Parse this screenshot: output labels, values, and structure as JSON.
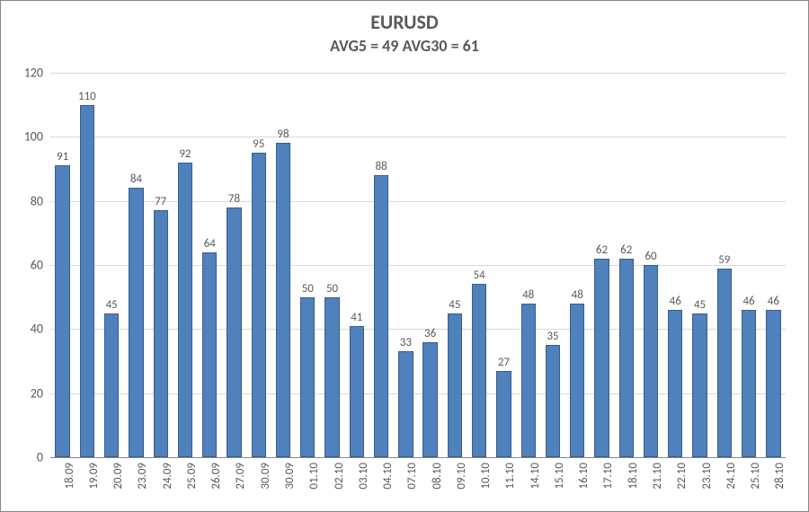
{
  "chart": {
    "type": "bar",
    "title": "EURUSD",
    "subtitle": "AVG5 = 49 AVG30 = 61",
    "title_fontsize": 22,
    "subtitle_fontsize": 18,
    "title_color": "#595959",
    "categories": [
      "18.09",
      "19.09",
      "20.09",
      "23.09",
      "24.09",
      "25.09",
      "26.09",
      "27.09",
      "30.09",
      "30.09",
      "01.10",
      "02.10",
      "03.10",
      "04.10",
      "07.10",
      "08.10",
      "09.10",
      "10.10",
      "11.10",
      "14.10",
      "15.10",
      "16.10",
      "17.10",
      "18.10",
      "21.10",
      "22.10",
      "23.10",
      "24.10",
      "25.10",
      "28.10"
    ],
    "values": [
      91,
      110,
      45,
      84,
      77,
      92,
      64,
      78,
      95,
      98,
      50,
      50,
      41,
      88,
      33,
      36,
      45,
      54,
      27,
      48,
      35,
      48,
      62,
      62,
      60,
      46,
      45,
      59,
      46,
      46
    ],
    "bar_fill": "#4f81bd",
    "bar_border": "#385d8a",
    "bar_border_width": 1,
    "bar_width_pct": 60,
    "data_label_fontsize": 13,
    "data_label_color": "#595959",
    "ylim": [
      0,
      120
    ],
    "ytick_step": 20,
    "ytick_labels": [
      "0",
      "20",
      "40",
      "60",
      "80",
      "100",
      "120"
    ],
    "ytick_fontsize": 14,
    "ytick_color": "#595959",
    "xlabel_fontsize": 13,
    "xlabel_rotation": -90,
    "xlabel_color": "#595959",
    "grid_color": "#d9d9d9",
    "axis_line_color": "#888888",
    "background_color": "#ffffff",
    "container_border_color": "#888888"
  }
}
